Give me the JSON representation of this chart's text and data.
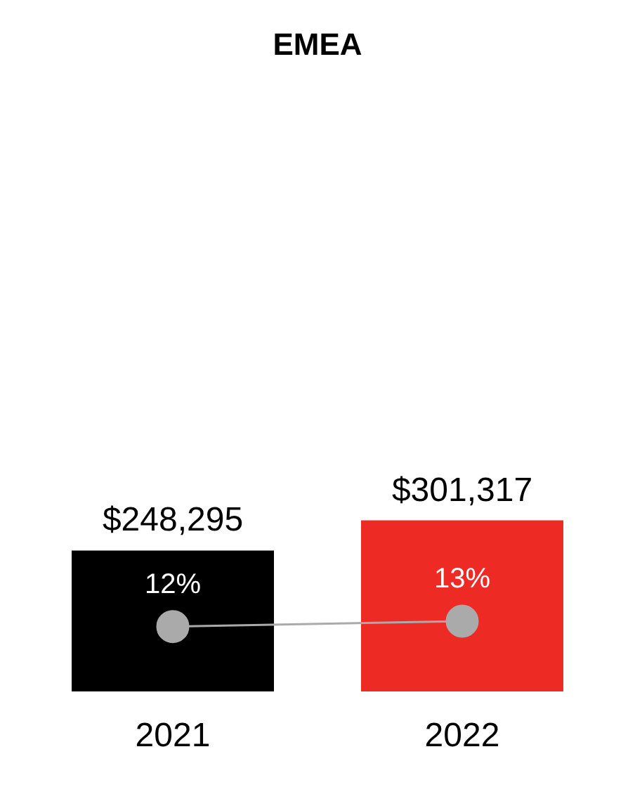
{
  "chart_data": {
    "type": "bar",
    "title": "EMEA",
    "categories": [
      "2021",
      "2022"
    ],
    "series": [
      {
        "colors": [
          "#000000",
          "#ee2a24"
        ],
        "values": [
          248295,
          301317
        ],
        "value_labels": [
          "$248,295",
          "$301,317"
        ]
      },
      {
        "type": "line",
        "axis": "y2",
        "color": "#aaaaaa",
        "marker": "circle",
        "values": [
          12,
          13
        ],
        "value_labels": [
          "12%",
          "13%"
        ]
      }
    ],
    "tick_labels": "x",
    "grid": false,
    "legend": false
  }
}
